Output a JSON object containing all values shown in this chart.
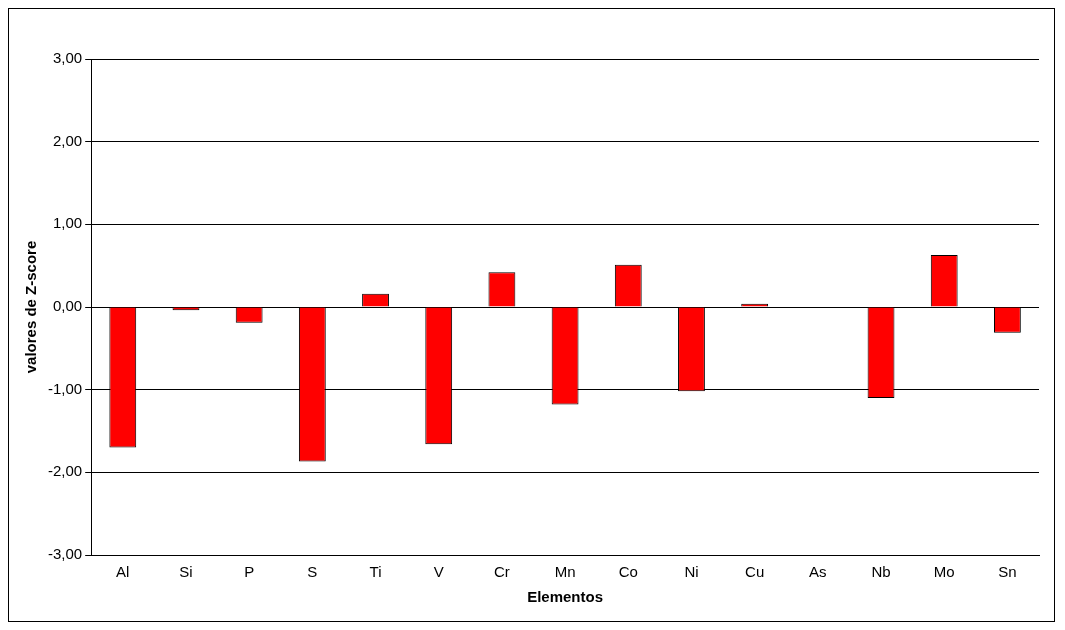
{
  "chart_data": {
    "type": "bar",
    "xlabel": "Elementos",
    "ylabel": "valores de Z-score",
    "categories": [
      "Al",
      "Si",
      "P",
      "S",
      "Ti",
      "V",
      "Cr",
      "Mn",
      "Co",
      "Ni",
      "Cu",
      "As",
      "Nb",
      "Mo",
      "Sn"
    ],
    "values": [
      -1.7,
      -0.04,
      -0.19,
      -1.87,
      0.16,
      -1.66,
      0.42,
      -1.18,
      0.51,
      -1.02,
      0.04,
      0,
      -1.1,
      0.63,
      -0.31
    ],
    "color": "#ff0000",
    "ylim": [
      -3,
      3
    ],
    "yticks": [
      {
        "value": -3,
        "label": "-3,00"
      },
      {
        "value": -2,
        "label": "-2,00"
      },
      {
        "value": -1,
        "label": "-1,00"
      },
      {
        "value": 0,
        "label": "0,00"
      },
      {
        "value": 1,
        "label": "1,00"
      },
      {
        "value": 2,
        "label": "2,00"
      },
      {
        "value": 3,
        "label": "3,00"
      }
    ],
    "grid": "y",
    "legend": false
  }
}
